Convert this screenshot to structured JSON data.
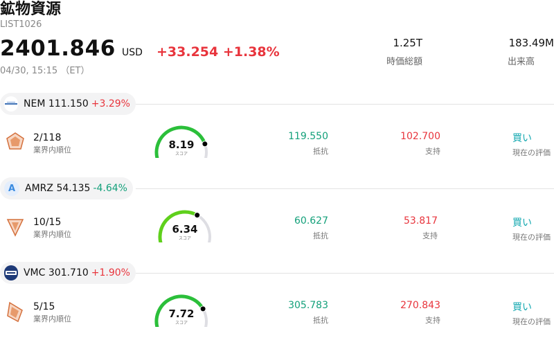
{
  "header": {
    "title": "鉱物資源",
    "code": "LIST1026",
    "price": "2401.846",
    "currency": "USD",
    "change": "+33.254 +1.38%",
    "timestamp": "04/30, 15:15 （ET）"
  },
  "stats": [
    {
      "value": "1.25T",
      "label": "時価総額"
    },
    {
      "value": "183.49M",
      "label": "出来高"
    }
  ],
  "colors": {
    "up": "#e8343c",
    "down": "#13a07a",
    "gauge_low": "#2bbf3a",
    "gauge_high": "#5fd01c"
  },
  "stocks": [
    {
      "logo_icon": "newmont-logo-icon",
      "symbol": "NEM",
      "price": "111.150",
      "change": "+3.29%",
      "direction": "up",
      "rank": "2/118",
      "rank_label": "業界内順位",
      "score": "8.19",
      "score_value": 8.19,
      "score_label": "スコア",
      "resistance": "119.550",
      "resistance_label": "抵抗",
      "support": "102.700",
      "support_label": "支持",
      "rating": "買い",
      "rating_label": "現在の評価"
    },
    {
      "logo_icon": "amrz-logo-icon",
      "logo_letter": "A",
      "symbol": "AMRZ",
      "price": "54.135",
      "change": "-4.64%",
      "direction": "down",
      "rank": "10/15",
      "rank_label": "業界内順位",
      "score": "6.34",
      "score_value": 6.34,
      "score_label": "スコア",
      "resistance": "60.627",
      "resistance_label": "抵抗",
      "support": "53.817",
      "support_label": "支持",
      "rating": "買い",
      "rating_label": "現在の評価"
    },
    {
      "logo_icon": "vmc-logo-icon",
      "symbol": "VMC",
      "price": "301.710",
      "change": "+1.90%",
      "direction": "up",
      "rank": "5/15",
      "rank_label": "業界内順位",
      "score": "7.72",
      "score_value": 7.72,
      "score_label": "スコア",
      "resistance": "305.783",
      "resistance_label": "抵抗",
      "support": "270.843",
      "support_label": "支持",
      "rating": "買い",
      "rating_label": "現在の評価"
    }
  ]
}
